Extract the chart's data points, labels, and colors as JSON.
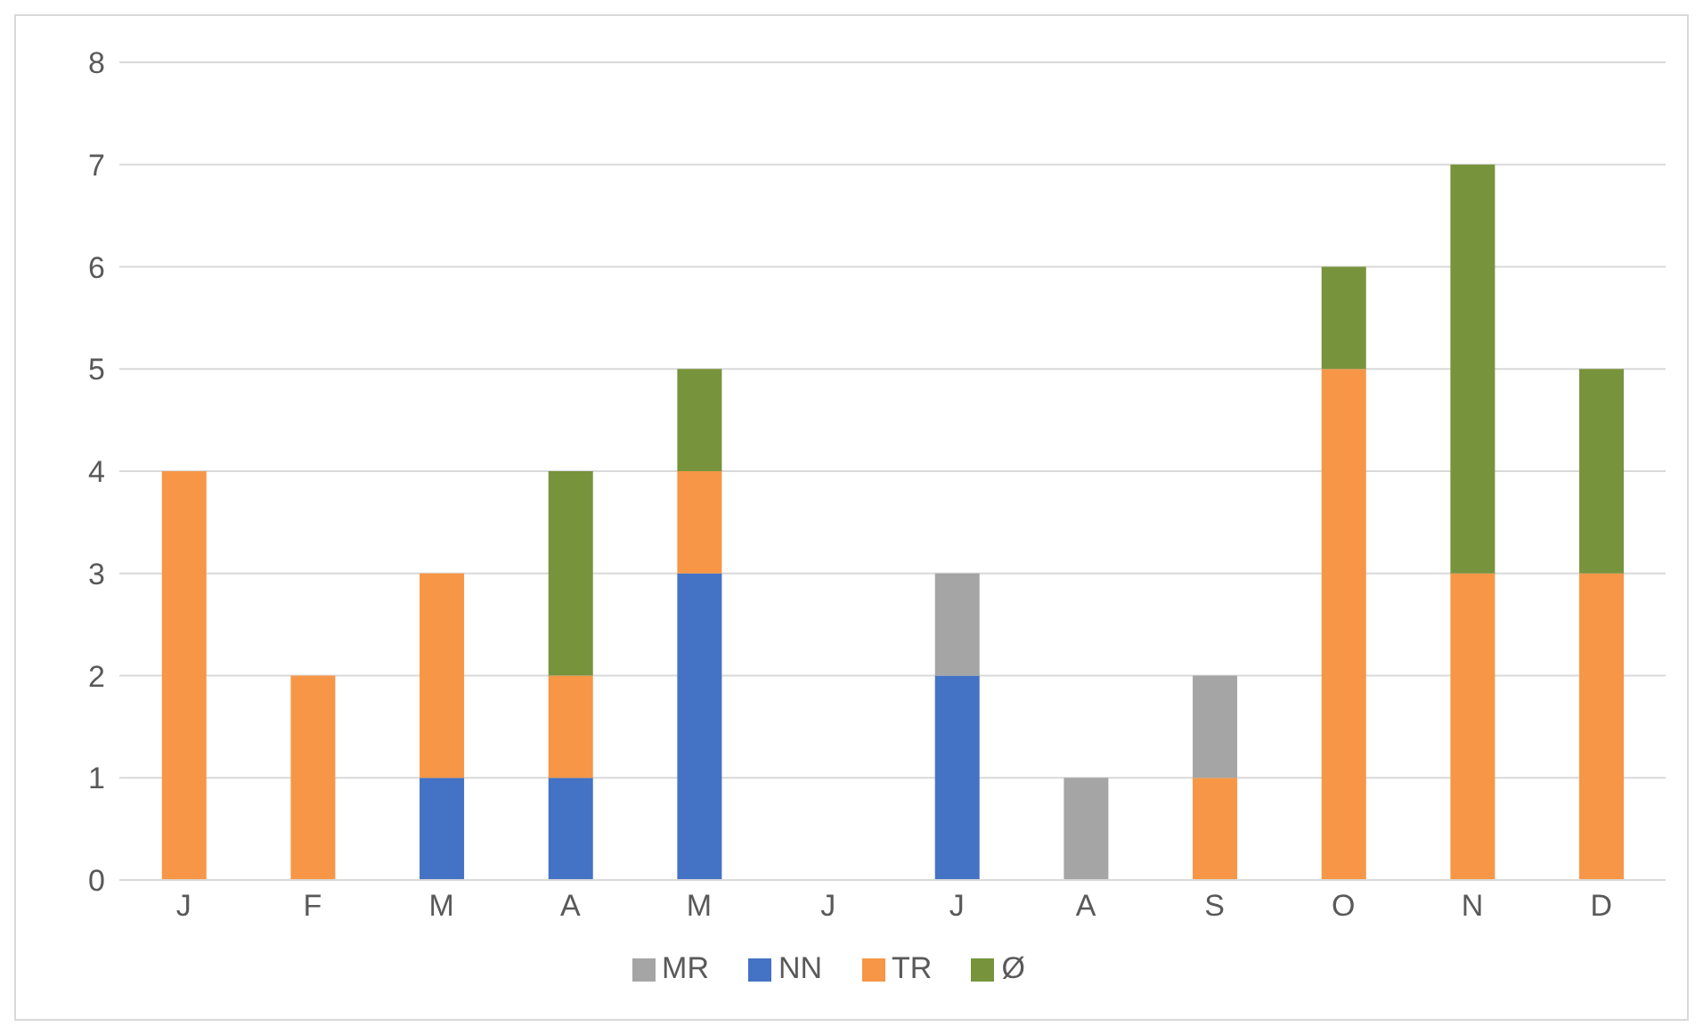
{
  "chart_data": {
    "type": "bar",
    "stacked": true,
    "categories": [
      "J",
      "F",
      "M",
      "A",
      "M",
      "J",
      "J",
      "A",
      "S",
      "O",
      "N",
      "D"
    ],
    "series": [
      {
        "name": "NN",
        "color": "#4472c4",
        "values": [
          0,
          0,
          1,
          1,
          3,
          0,
          2,
          0,
          0,
          0,
          0,
          0
        ]
      },
      {
        "name": "TR",
        "color": "#f79646",
        "values": [
          4,
          2,
          2,
          1,
          1,
          0,
          0,
          0,
          1,
          5,
          3,
          3
        ]
      },
      {
        "name": "MR",
        "color": "#a5a5a5",
        "values": [
          0,
          0,
          0,
          0,
          0,
          0,
          1,
          1,
          1,
          0,
          0,
          0
        ]
      },
      {
        "name": "Ø",
        "color": "#77933c",
        "values": [
          0,
          0,
          0,
          2,
          1,
          0,
          0,
          0,
          0,
          1,
          4,
          2
        ]
      }
    ],
    "ylim": [
      0,
      8
    ],
    "yticks": [
      0,
      1,
      2,
      3,
      4,
      5,
      6,
      7,
      8
    ],
    "grid": "y",
    "legend": "bottom"
  }
}
